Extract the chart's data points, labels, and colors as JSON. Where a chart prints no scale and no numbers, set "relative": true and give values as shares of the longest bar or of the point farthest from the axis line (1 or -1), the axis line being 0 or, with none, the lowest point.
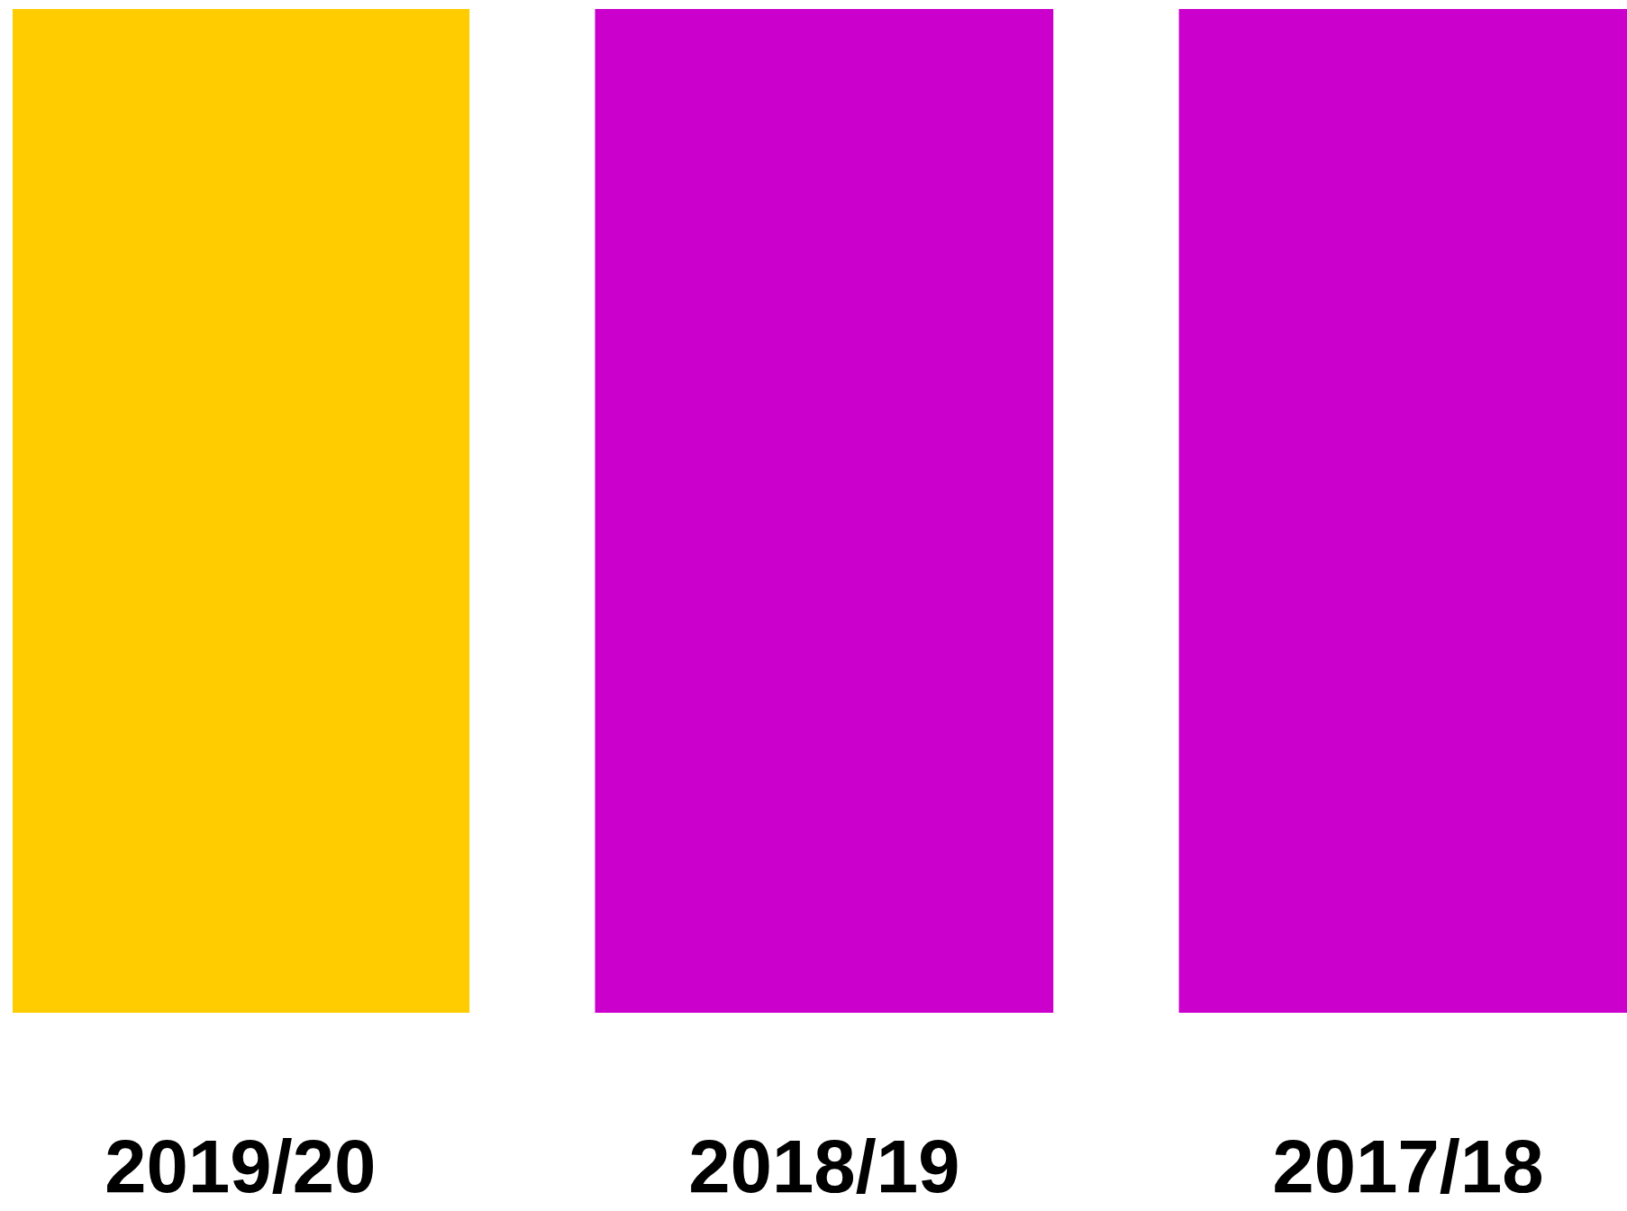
{
  "chart_data": {
    "type": "bar",
    "relative": true,
    "categories": [
      "2019/20",
      "2018/19",
      "2017/18"
    ],
    "values": [
      1,
      1,
      1
    ],
    "colors": [
      "#ffcc00",
      "#cc00cc",
      "#cc00cc"
    ]
  }
}
